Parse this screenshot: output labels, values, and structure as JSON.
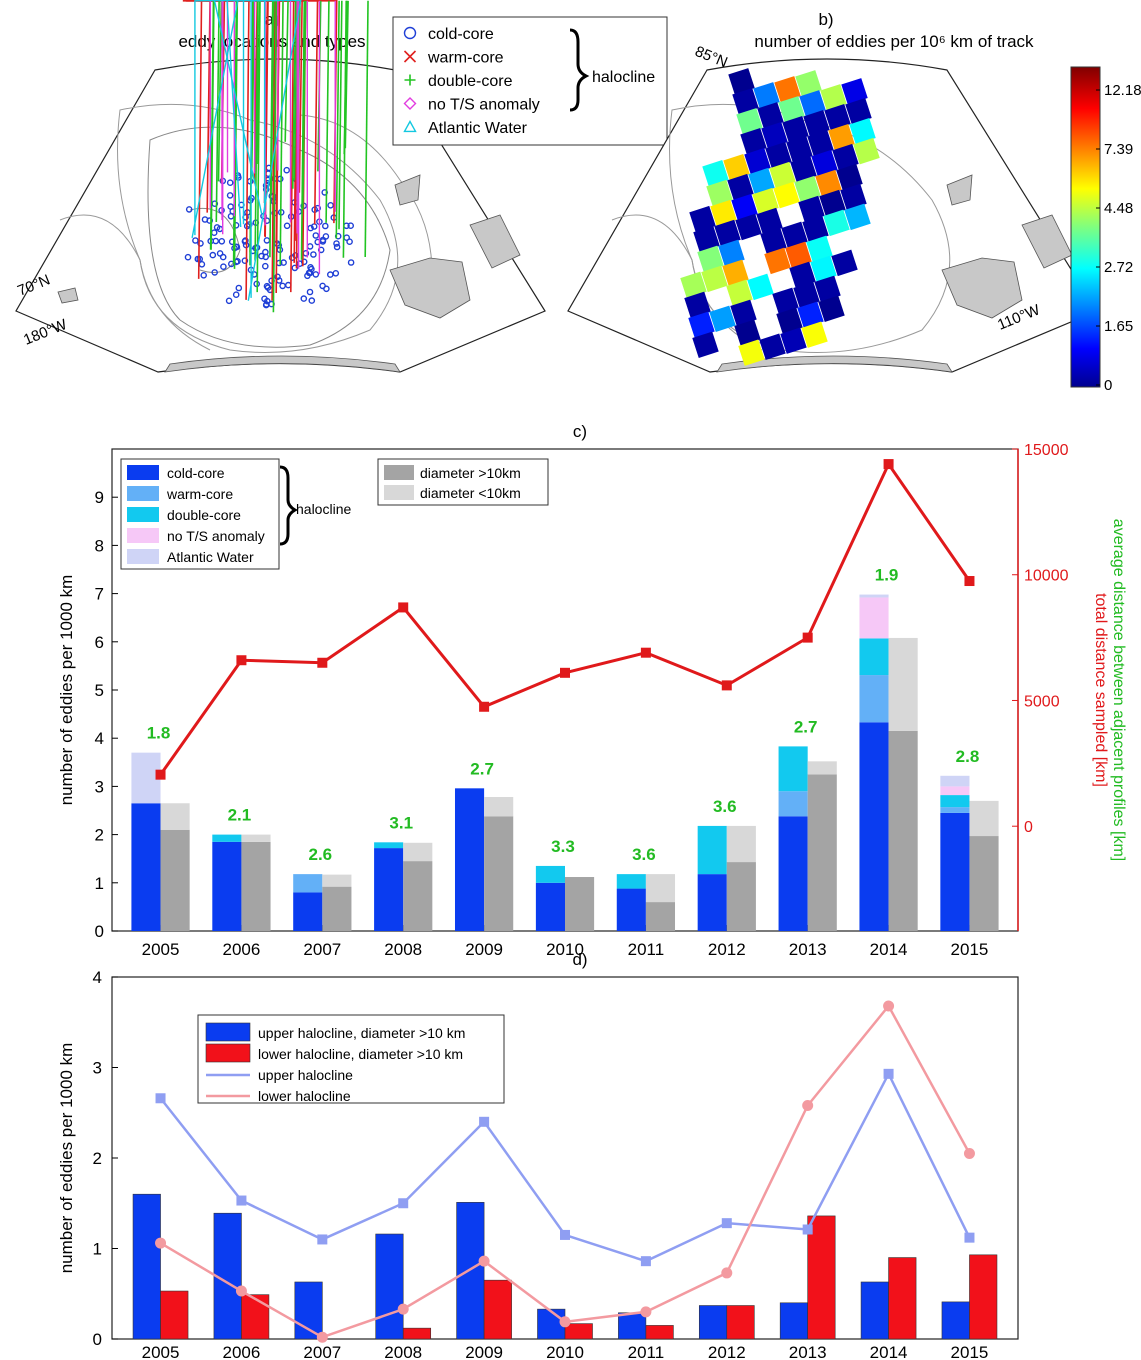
{
  "panel_a": {
    "title_line1": "a)",
    "title_line2": "eddy locations and types",
    "lat_label": "70°N",
    "lon_label": "180°W",
    "legend": [
      {
        "label": "cold-core",
        "symbol": "circle",
        "color": "#1f3fd6"
      },
      {
        "label": "warm-core",
        "symbol": "x",
        "color": "#e0201e"
      },
      {
        "label": "double-core",
        "symbol": "plus",
        "color": "#22c422"
      },
      {
        "label": "no T/S anomaly",
        "symbol": "diamond",
        "color": "#e23be0"
      },
      {
        "label": "Atlantic Water",
        "symbol": "triangle",
        "color": "#13c8e0"
      }
    ],
    "brace_label": "halocline"
  },
  "panel_b": {
    "title_line1": "b)",
    "title_line2": "number of eddies per 10⁶ km of track",
    "lat_label": "85°N",
    "lon_label": "110°W",
    "colorbar_ticks": [
      "12.18",
      "7.39",
      "4.48",
      "2.72",
      "1.65",
      "0"
    ]
  },
  "chart_data": [
    {
      "id": "c",
      "type": "bar",
      "title": "c)",
      "ylabel": "number of eddies per 1000 km",
      "y2label_red": "total distance sampled [km]",
      "y2label_green": "average distance between adjacent profiles [km]",
      "ylim": [
        0,
        10
      ],
      "yticks": [
        "0",
        "1",
        "2",
        "3",
        "4",
        "5",
        "6",
        "7",
        "8",
        "9"
      ],
      "y2lim": [
        -4167,
        15000
      ],
      "y2ticks": [
        "0",
        "5000",
        "10000",
        "15000"
      ],
      "categories": [
        "2005",
        "2006",
        "2007",
        "2008",
        "2009",
        "2010",
        "2011",
        "2012",
        "2013",
        "2014",
        "2015"
      ],
      "stacked_by_type": [
        {
          "name": "cold-core",
          "color": "#0a3cf0",
          "values": [
            2.65,
            1.85,
            0.8,
            1.72,
            2.96,
            1.0,
            0.88,
            1.18,
            2.38,
            4.33,
            2.45
          ]
        },
        {
          "name": "warm-core",
          "color": "#63b0f7",
          "values": [
            0,
            0,
            0.38,
            0,
            0,
            0,
            0,
            0,
            0.52,
            0.98,
            0.12
          ]
        },
        {
          "name": "double-core",
          "color": "#12c9ef",
          "values": [
            0,
            0.15,
            0,
            0.12,
            0,
            0.35,
            0.3,
            1.0,
            0.93,
            0.76,
            0.25
          ]
        },
        {
          "name": "no T/S anomaly",
          "color": "#f6c8f7",
          "values": [
            0,
            0,
            0,
            0,
            0,
            0,
            0,
            0,
            0,
            0.85,
            0.18
          ]
        },
        {
          "name": "Atlantic Water",
          "color": "#cfd4f6",
          "values": [
            1.05,
            0,
            0,
            0,
            0,
            0,
            0,
            0,
            0,
            0.06,
            0.22
          ]
        }
      ],
      "stacked_by_size": [
        {
          "name": "diameter >10km",
          "color": "#a4a4a4",
          "values": [
            2.1,
            1.85,
            0.92,
            1.45,
            2.38,
            1.12,
            0.6,
            1.43,
            3.25,
            4.15,
            1.97
          ]
        },
        {
          "name": "diameter <10km",
          "color": "#d8d8d8",
          "values": [
            0.55,
            0.15,
            0.25,
            0.38,
            0.4,
            0,
            0.58,
            0.75,
            0.27,
            1.93,
            0.73
          ]
        }
      ],
      "red_line": {
        "name": "total distance sampled [km]",
        "color": "#e0191b",
        "values": [
          2050,
          6600,
          6500,
          8700,
          4750,
          6100,
          6900,
          5600,
          7500,
          14400,
          9750
        ]
      },
      "green_labels": {
        "color": "#22bb22",
        "values": [
          "1.8",
          "2.1",
          "2.6",
          "3.1",
          "2.7",
          "3.3",
          "3.6",
          "3.6",
          "2.7",
          "1.9",
          "2.8"
        ]
      },
      "legend_brace_label": "halocline"
    },
    {
      "id": "d",
      "type": "bar",
      "title": "d)",
      "ylabel": "number of eddies per 1000 km",
      "ylim": [
        0,
        4
      ],
      "yticks": [
        "0",
        "1",
        "2",
        "3",
        "4"
      ],
      "categories": [
        "2005",
        "2006",
        "2007",
        "2008",
        "2009",
        "2010",
        "2011",
        "2012",
        "2013",
        "2014",
        "2015"
      ],
      "series": [
        {
          "name": "upper halocline, diameter >10 km",
          "kind": "bar",
          "color": "#0a3cf0",
          "values": [
            1.6,
            1.39,
            0.63,
            1.16,
            1.51,
            0.33,
            0.29,
            0.37,
            0.4,
            0.63,
            0.41
          ]
        },
        {
          "name": "lower halocline, diameter >10 km",
          "kind": "bar",
          "color": "#f2111a",
          "values": [
            0.53,
            0.49,
            0,
            0.12,
            0.65,
            0.17,
            0.15,
            0.37,
            1.36,
            0.9,
            0.93
          ]
        },
        {
          "name": "upper halocline",
          "kind": "line",
          "color": "#8f9ef2",
          "values": [
            2.66,
            1.53,
            1.1,
            1.5,
            2.4,
            1.15,
            0.86,
            1.28,
            1.21,
            2.93,
            1.12
          ]
        },
        {
          "name": "lower halocline",
          "kind": "line",
          "color": "#f39aa0",
          "values": [
            1.06,
            0.53,
            0.02,
            0.33,
            0.86,
            0.19,
            0.3,
            0.73,
            2.58,
            3.68,
            2.05
          ]
        }
      ]
    }
  ]
}
